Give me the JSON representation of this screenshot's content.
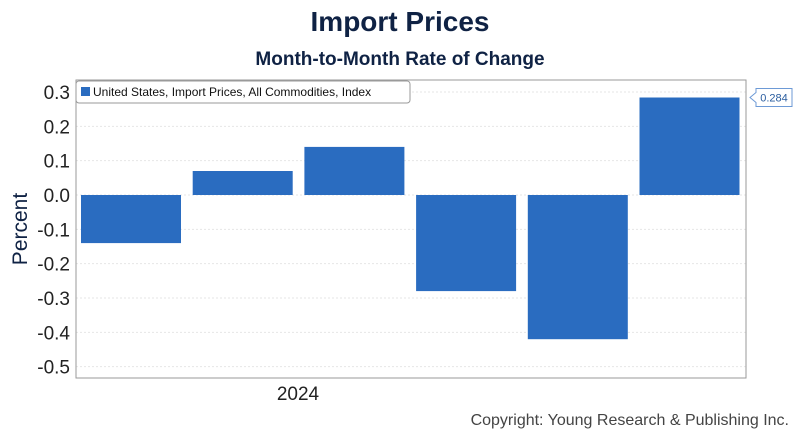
{
  "chart_data": {
    "type": "bar",
    "title": "Import Prices",
    "subtitle": "Month-to-Month Rate of Change",
    "ylabel": "Percent",
    "xlabel": "",
    "ylim": [
      -0.55,
      0.34
    ],
    "yticks": [
      "0.3",
      "0.2",
      "0.1",
      "0.0",
      "-0.1",
      "-0.2",
      "-0.3",
      "-0.4",
      "-0.5"
    ],
    "x_category_label": "2024",
    "series": [
      {
        "name": "United States, Import Prices, All Commodities, Index",
        "values": [
          -0.14,
          0.07,
          0.14,
          -0.28,
          -0.42,
          0.284
        ]
      }
    ],
    "data_labels": [
      {
        "index": 5,
        "text": "0.284"
      }
    ],
    "bar_color": "#2a6cc0",
    "legend_position": "top-left",
    "grid": true
  },
  "copyright": "Copyright: Young Research & Publishing Inc."
}
